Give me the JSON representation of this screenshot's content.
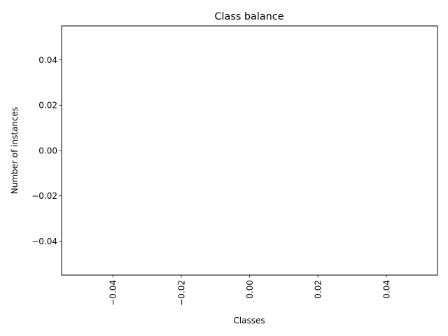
{
  "chart_data": {
    "type": "bar",
    "title": "Class balance",
    "xlabel": "Classes",
    "ylabel": "Number of instances",
    "categories": [],
    "values": [],
    "xlim": [
      -0.055,
      0.055
    ],
    "ylim": [
      -0.055,
      0.055
    ],
    "xticks": [
      {
        "value": -0.04,
        "label": "−0.04"
      },
      {
        "value": -0.02,
        "label": "−0.02"
      },
      {
        "value": 0.0,
        "label": "0.00"
      },
      {
        "value": 0.02,
        "label": "0.02"
      },
      {
        "value": 0.04,
        "label": "0.04"
      }
    ],
    "yticks": [
      {
        "value": -0.04,
        "label": "−0.04"
      },
      {
        "value": -0.02,
        "label": "−0.02"
      },
      {
        "value": 0.0,
        "label": "0.00"
      },
      {
        "value": 0.02,
        "label": "0.02"
      },
      {
        "value": 0.04,
        "label": "0.04"
      }
    ],
    "xtick_rotation": 90,
    "grid": false,
    "legend": "none",
    "colors": {
      "axes": "#000000",
      "background": "#ffffff"
    }
  }
}
